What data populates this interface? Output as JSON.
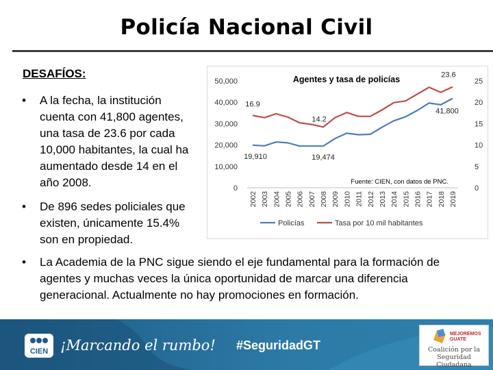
{
  "slide": {
    "title": "Policía Nacional Civil",
    "heading": "DESAFÍOS:",
    "bullets": [
      "A la fecha, la institución\ncuenta con 41,800 agentes,\nuna tasa de 23.6 por cada\n10,000 habitantes, la cual ha\naumentado desde 14 en el\naño 2008.",
      "De 896 sedes policiales que\nexisten, únicamente 15.4%\nson en propiedad.",
      "La Academia de la PNC sigue siendo el eje fundamental para la formación de\nagentes y muchas veces la única oportunidad de marcar una diferencia\ngeneracional. Actualmente no hay promociones en formación."
    ],
    "bullet_symbol": "•"
  },
  "chart_data": {
    "type": "line",
    "title": "Agentes y tasa de policías",
    "source_note": "Fuente: CIEN, con datos de PNC.",
    "x": [
      "2002",
      "2003",
      "2004",
      "2005",
      "2006",
      "2007",
      "2008",
      "2009",
      "2010",
      "2011",
      "2012",
      "2013",
      "2014",
      "2015",
      "2016",
      "2017",
      "2018",
      "2019"
    ],
    "y_left": {
      "ylim": [
        0,
        50000
      ],
      "ticks": [
        "0",
        "10,000",
        "20,000",
        "30,000",
        "40,000",
        "50,000"
      ]
    },
    "y_right": {
      "ylim": [
        0,
        25
      ],
      "ticks": [
        "0",
        "5",
        "10",
        "15",
        "20",
        "25"
      ]
    },
    "series": [
      {
        "name": "Policías",
        "axis": "left",
        "color": "#4a7ebb",
        "values": [
          19910,
          19600,
          21400,
          21000,
          19500,
          19500,
          19474,
          23000,
          25500,
          24800,
          25000,
          28300,
          31300,
          33200,
          36200,
          39600,
          38800,
          41800
        ]
      },
      {
        "name": "Tasa por 10 mil habitantes",
        "axis": "right",
        "color": "#be4b48",
        "values": [
          16.9,
          16.4,
          17.3,
          16.5,
          15.2,
          14.8,
          14.2,
          16.4,
          17.6,
          16.7,
          16.7,
          18.2,
          19.9,
          20.3,
          21.9,
          23.5,
          22.3,
          23.6
        ]
      }
    ],
    "annotations": [
      "16.9",
      "14.2",
      "23.6",
      "19,910",
      "19,474",
      "41,800"
    ],
    "legend_position": "bottom",
    "grid": false
  },
  "footer": {
    "slogan": "¡Marcando el rumbo!",
    "hashtag": "#SeguridadGT",
    "cien_logo_text": "CIEN",
    "mejoremos_text": "MEJOREMOS\nGUATE",
    "coalition_text": "Coalición por la\nSeguridad Ciudadana",
    "bg_color": "#2566a0"
  }
}
